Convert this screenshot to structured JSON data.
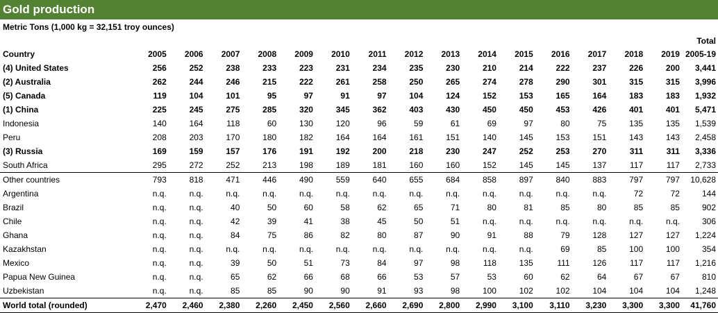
{
  "header": {
    "title": "Gold production",
    "subtitle": "Metric Tons (1,000 kg = 32,151 troy ounces)"
  },
  "table": {
    "total_label": "Total",
    "columns": [
      "Country",
      "2005",
      "2006",
      "2007",
      "2008",
      "2009",
      "2010",
      "2011",
      "2012",
      "2013",
      "2014",
      "2015",
      "2016",
      "2017",
      "2018",
      "2019",
      "2005-19"
    ],
    "rows": [
      {
        "bold": true,
        "cells": [
          "(4) United States",
          "256",
          "252",
          "238",
          "233",
          "223",
          "231",
          "234",
          "235",
          "230",
          "210",
          "214",
          "222",
          "237",
          "226",
          "200",
          "3,441"
        ]
      },
      {
        "bold": true,
        "cells": [
          "(2) Australia",
          "262",
          "244",
          "246",
          "215",
          "222",
          "261",
          "258",
          "250",
          "265",
          "274",
          "278",
          "290",
          "301",
          "315",
          "315",
          "3,996"
        ]
      },
      {
        "bold": true,
        "cells": [
          "(5) Canada",
          "119",
          "104",
          "101",
          "95",
          "97",
          "91",
          "97",
          "104",
          "124",
          "152",
          "153",
          "165",
          "164",
          "183",
          "183",
          "1,932"
        ]
      },
      {
        "bold": true,
        "cells": [
          "(1) China",
          "225",
          "245",
          "275",
          "285",
          "320",
          "345",
          "362",
          "403",
          "430",
          "450",
          "450",
          "453",
          "426",
          "401",
          "401",
          "5,471"
        ]
      },
      {
        "cells": [
          "Indonesia",
          "140",
          "164",
          "118",
          "60",
          "130",
          "120",
          "96",
          "59",
          "61",
          "69",
          "97",
          "80",
          "75",
          "135",
          "135",
          "1,539"
        ]
      },
      {
        "cells": [
          "Peru",
          "208",
          "203",
          "170",
          "180",
          "182",
          "164",
          "164",
          "161",
          "151",
          "140",
          "145",
          "153",
          "151",
          "143",
          "143",
          "2,458"
        ]
      },
      {
        "bold": true,
        "cells": [
          "(3) Russia",
          "169",
          "159",
          "157",
          "176",
          "191",
          "192",
          "200",
          "218",
          "230",
          "247",
          "252",
          "253",
          "270",
          "311",
          "311",
          "3,336"
        ]
      },
      {
        "cells": [
          "South Africa",
          "295",
          "272",
          "252",
          "213",
          "198",
          "189",
          "181",
          "160",
          "160",
          "152",
          "145",
          "145",
          "137",
          "117",
          "117",
          "2,733"
        ]
      },
      {
        "rule_above": true,
        "cells": [
          "Other countries",
          "793",
          "818",
          "471",
          "446",
          "490",
          "559",
          "640",
          "655",
          "684",
          "858",
          "897",
          "840",
          "883",
          "797",
          "797",
          "10,628"
        ]
      },
      {
        "cells": [
          "Argentina",
          "n.q.",
          "n.q.",
          "n.q.",
          "n.q.",
          "n.q.",
          "n.q.",
          "n.q.",
          "n.q.",
          "n.q.",
          "n.q.",
          "n.q.",
          "n.q.",
          "n.q.",
          "72",
          "72",
          "144"
        ]
      },
      {
        "cells": [
          "Brazil",
          "n.q.",
          "n.q.",
          "40",
          "50",
          "60",
          "58",
          "62",
          "65",
          "71",
          "80",
          "81",
          "85",
          "80",
          "85",
          "85",
          "902"
        ]
      },
      {
        "cells": [
          "Chile",
          "n.q.",
          "n.q.",
          "42",
          "39",
          "41",
          "38",
          "45",
          "50",
          "51",
          "n.q.",
          "n.q.",
          "n.q.",
          "n.q.",
          "n.q.",
          "n.q.",
          "306"
        ]
      },
      {
        "cells": [
          "Ghana",
          "n.q.",
          "n.q.",
          "84",
          "75",
          "86",
          "82",
          "80",
          "87",
          "90",
          "91",
          "88",
          "79",
          "128",
          "127",
          "127",
          "1,224"
        ]
      },
      {
        "cells": [
          "Kazakhstan",
          "n.q.",
          "n.q.",
          "n.q.",
          "n.q.",
          "n.q.",
          "n.q.",
          "n.q.",
          "n.q.",
          "n.q.",
          "n.q.",
          "n.q.",
          "69",
          "85",
          "100",
          "100",
          "354"
        ]
      },
      {
        "cells": [
          "Mexico",
          "n.q.",
          "n.q.",
          "39",
          "50",
          "51",
          "73",
          "84",
          "97",
          "98",
          "118",
          "135",
          "111",
          "126",
          "117",
          "117",
          "1,216"
        ]
      },
      {
        "cells": [
          "Papua New Guinea",
          "n.q.",
          "n.q.",
          "65",
          "62",
          "66",
          "68",
          "66",
          "53",
          "57",
          "53",
          "60",
          "62",
          "64",
          "67",
          "67",
          "810"
        ]
      },
      {
        "cells": [
          "Uzbekistan",
          "n.q.",
          "n.q.",
          "85",
          "85",
          "90",
          "90",
          "91",
          "93",
          "98",
          "100",
          "102",
          "102",
          "104",
          "104",
          "104",
          "1,248"
        ]
      },
      {
        "bold": true,
        "rule_above": true,
        "cells": [
          "World total (rounded)",
          "2,470",
          "2,460",
          "2,380",
          "2,260",
          "2,450",
          "2,560",
          "2,660",
          "2,690",
          "2,800",
          "2,990",
          "3,100",
          "3,110",
          "3,230",
          "3,300",
          "3,300",
          "41,760"
        ]
      }
    ]
  }
}
